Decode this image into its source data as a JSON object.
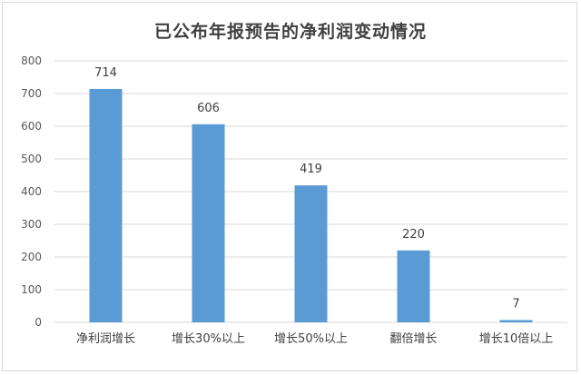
{
  "chart_data": {
    "type": "bar",
    "title": "已公布年报预告的净利润变动情况",
    "categories": [
      "净利润增长",
      "增长30%以上",
      "增长50%以上",
      "翻倍增长",
      "增长10倍以上"
    ],
    "values": [
      714,
      606,
      419,
      220,
      7
    ],
    "ylim": [
      0,
      800
    ],
    "yticks": [
      0,
      100,
      200,
      300,
      400,
      500,
      600,
      700,
      800
    ],
    "grid": true,
    "bar_color": "#5b9bd5",
    "grid_color": "#d9d9d9"
  }
}
